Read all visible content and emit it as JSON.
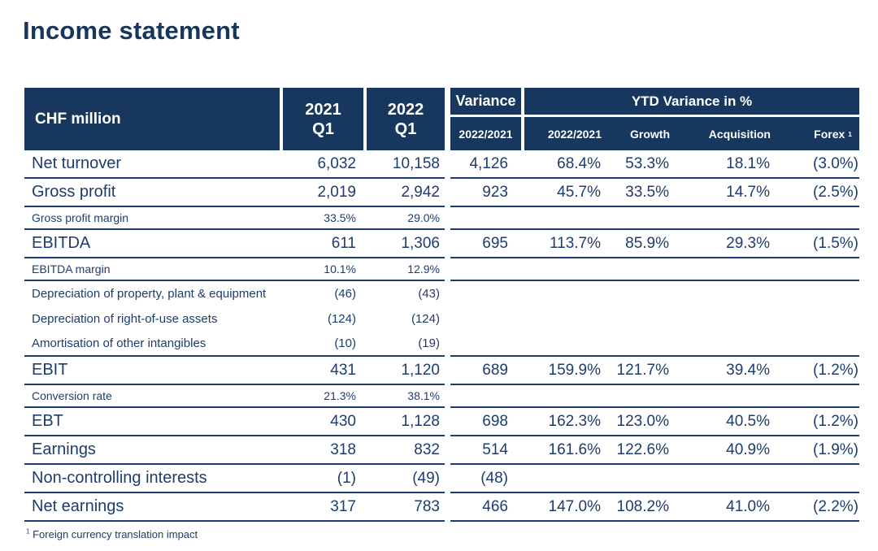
{
  "page": {
    "title": "Income statement",
    "footnote": {
      "sup": "1",
      "text": "Foreign currency translation impact"
    }
  },
  "colors": {
    "header_bg": "#17375e",
    "text_navy": "#1e3c6e",
    "title_navy": "#17365d",
    "background": "#ffffff"
  },
  "table": {
    "header": {
      "unit": "CHF million",
      "y2021": {
        "line1": "2021",
        "line2": "Q1"
      },
      "y2022": {
        "line1": "2022",
        "line2": "Q1"
      },
      "variance": {
        "label": "Variance",
        "sub": "2022/2021"
      },
      "ytd": {
        "label": "YTD Variance in %",
        "sub1": "2022/2021",
        "sub2": "Growth",
        "sub3": "Acquisition",
        "forex": {
          "label": "Forex",
          "sup": "1"
        }
      }
    },
    "rows": [
      {
        "label": "Net turnover",
        "type": "major",
        "border": true,
        "v2021": "6,032",
        "v2022": "10,158",
        "variance": "4,126",
        "ytd": "68.4%",
        "growth": "53.3%",
        "acquisition": "18.1%",
        "forex": "(3.0%)"
      },
      {
        "label": "Gross profit",
        "type": "major",
        "border": true,
        "v2021": "2,019",
        "v2022": "2,942",
        "variance": "923",
        "ytd": "45.7%",
        "growth": "33.5%",
        "acquisition": "14.7%",
        "forex": "(2.5%)"
      },
      {
        "label": "Gross profit margin",
        "type": "minor",
        "border": true,
        "v2021": "33.5%",
        "v2022": "29.0%",
        "variance": "",
        "ytd": "",
        "growth": "",
        "acquisition": "",
        "forex": ""
      },
      {
        "label": "EBITDA",
        "type": "major",
        "border": true,
        "v2021": "611",
        "v2022": "1,306",
        "variance": "695",
        "ytd": "113.7%",
        "growth": "85.9%",
        "acquisition": "29.3%",
        "forex": "(1.5%)"
      },
      {
        "label": "EBITDA margin",
        "type": "minor",
        "border": true,
        "v2021": "10.1%",
        "v2022": "12.9%",
        "variance": "",
        "ytd": "",
        "growth": "",
        "acquisition": "",
        "forex": ""
      },
      {
        "label": "Depreciation of property, plant & equipment",
        "type": "detail",
        "border": false,
        "v2021": "(46)",
        "v2022": "(43)",
        "variance": "",
        "ytd": "",
        "growth": "",
        "acquisition": "",
        "forex": ""
      },
      {
        "label": "Depreciation of right-of-use assets",
        "type": "detail",
        "border": false,
        "v2021": "(124)",
        "v2022": "(124)",
        "variance": "",
        "ytd": "",
        "growth": "",
        "acquisition": "",
        "forex": ""
      },
      {
        "label": "Amortisation of other intangibles",
        "type": "detail",
        "border": true,
        "v2021": "(10)",
        "v2022": "(19)",
        "variance": "",
        "ytd": "",
        "growth": "",
        "acquisition": "",
        "forex": ""
      },
      {
        "label": "EBIT",
        "type": "major",
        "border": true,
        "v2021": "431",
        "v2022": "1,120",
        "variance": "689",
        "ytd": "159.9%",
        "growth": "121.7%",
        "acquisition": "39.4%",
        "forex": "(1.2%)"
      },
      {
        "label": "Conversion rate",
        "type": "minor",
        "border": true,
        "v2021": "21.3%",
        "v2022": "38.1%",
        "variance": "",
        "ytd": "",
        "growth": "",
        "acquisition": "",
        "forex": ""
      },
      {
        "label": "EBT",
        "type": "major",
        "border": true,
        "v2021": "430",
        "v2022": "1,128",
        "variance": "698",
        "ytd": "162.3%",
        "growth": "123.0%",
        "acquisition": "40.5%",
        "forex": "(1.2%)"
      },
      {
        "label": "Earnings",
        "type": "major",
        "border": true,
        "v2021": "318",
        "v2022": "832",
        "variance": "514",
        "ytd": "161.6%",
        "growth": "122.6%",
        "acquisition": "40.9%",
        "forex": "(1.9%)"
      },
      {
        "label": "Non-controlling interests",
        "type": "major",
        "border": true,
        "v2021": "(1)",
        "v2022": "(49)",
        "variance": "(48)",
        "ytd": "",
        "growth": "",
        "acquisition": "",
        "forex": ""
      },
      {
        "label": "Net earnings",
        "type": "major",
        "border": true,
        "v2021": "317",
        "v2022": "783",
        "variance": "466",
        "ytd": "147.0%",
        "growth": "108.2%",
        "acquisition": "41.0%",
        "forex": "(2.2%)"
      }
    ]
  }
}
